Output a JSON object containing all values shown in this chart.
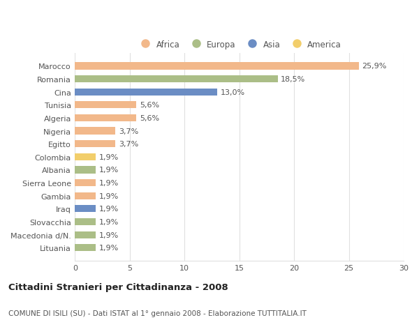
{
  "categories": [
    "Marocco",
    "Romania",
    "Cina",
    "Tunisia",
    "Algeria",
    "Nigeria",
    "Egitto",
    "Colombia",
    "Albania",
    "Sierra Leone",
    "Gambia",
    "Iraq",
    "Slovacchia",
    "Macedonia d/N.",
    "Lituania"
  ],
  "values": [
    25.9,
    18.5,
    13.0,
    5.6,
    5.6,
    3.7,
    3.7,
    1.9,
    1.9,
    1.9,
    1.9,
    1.9,
    1.9,
    1.9,
    1.9
  ],
  "labels": [
    "25,9%",
    "18,5%",
    "13,0%",
    "5,6%",
    "5,6%",
    "3,7%",
    "3,7%",
    "1,9%",
    "1,9%",
    "1,9%",
    "1,9%",
    "1,9%",
    "1,9%",
    "1,9%",
    "1,9%"
  ],
  "colors": [
    "#F2B88A",
    "#ABBE87",
    "#6B8DC4",
    "#F2B88A",
    "#F2B88A",
    "#F2B88A",
    "#F2B88A",
    "#F2CE6B",
    "#ABBE87",
    "#F2B88A",
    "#F2B88A",
    "#6B8DC4",
    "#ABBE87",
    "#ABBE87",
    "#ABBE87"
  ],
  "continent_colors": {
    "Africa": "#F2B88A",
    "Europa": "#ABBE87",
    "Asia": "#6B8DC4",
    "America": "#F2CE6B"
  },
  "legend_labels": [
    "Africa",
    "Europa",
    "Asia",
    "America"
  ],
  "xlim": [
    0,
    30
  ],
  "xticks": [
    0,
    5,
    10,
    15,
    20,
    25,
    30
  ],
  "title": "Cittadini Stranieri per Cittadinanza - 2008",
  "subtitle": "COMUNE DI ISILI (SU) - Dati ISTAT al 1° gennaio 2008 - Elaborazione TUTTITALIA.IT",
  "bg_color": "#ffffff",
  "grid_color": "#e0e0e0",
  "bar_height": 0.55,
  "title_fontsize": 9.5,
  "subtitle_fontsize": 7.5,
  "legend_fontsize": 8.5,
  "tick_fontsize": 8,
  "value_fontsize": 8
}
